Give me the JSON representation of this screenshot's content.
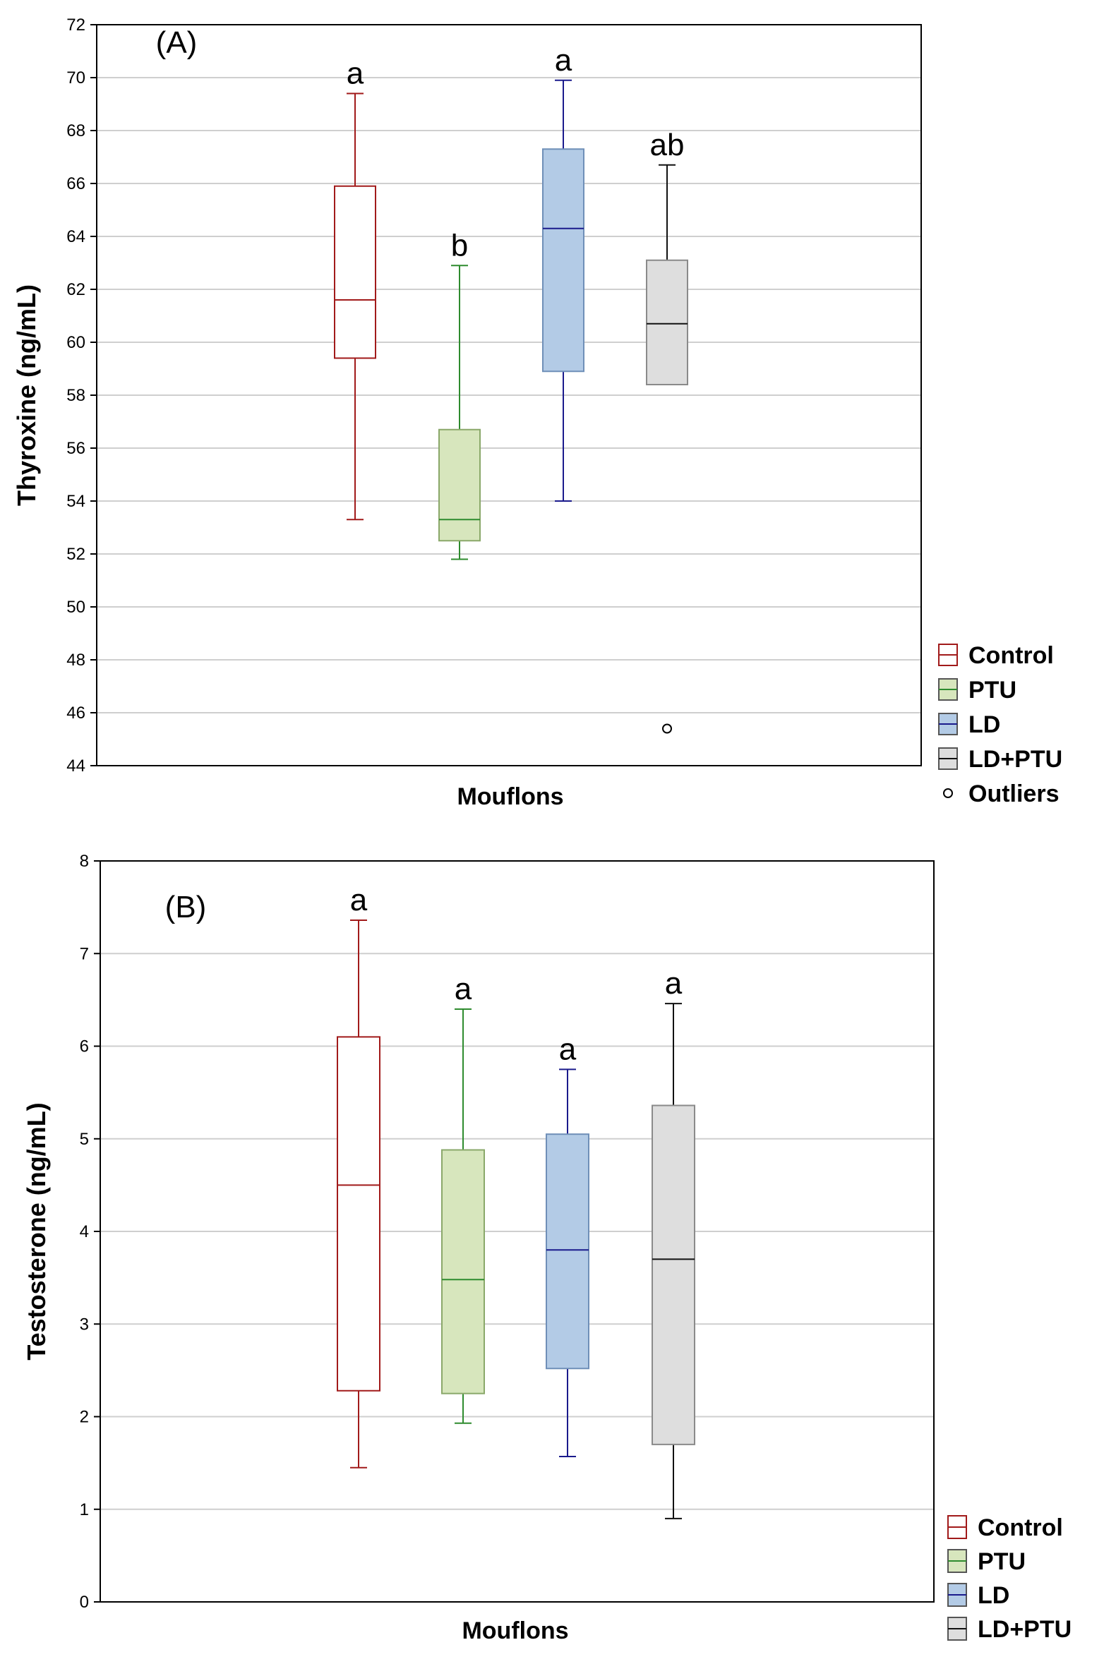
{
  "chart_data": [
    {
      "type": "box",
      "panel_label": "(A)",
      "xlabel": "Mouflons",
      "ylabel": "Thyroxine (ng/mL)",
      "ylim": [
        44,
        72
      ],
      "yticks": [
        44,
        46,
        48,
        50,
        52,
        54,
        56,
        58,
        60,
        62,
        64,
        66,
        68,
        70,
        72
      ],
      "grid": true,
      "legend_position": "right-bottom",
      "series": [
        {
          "name": "Control",
          "color": "#a11a1a",
          "fill": "#ffffff",
          "whisker_low": 53.3,
          "q1": 59.4,
          "median": 61.6,
          "q3": 65.9,
          "whisker_high": 69.4,
          "letter": "a"
        },
        {
          "name": "PTU",
          "color": "#2e8b2e",
          "fill": "#d7e6bd",
          "whisker_low": 51.8,
          "q1": 52.5,
          "median": 53.3,
          "q3": 56.7,
          "whisker_high": 62.9,
          "letter": "b"
        },
        {
          "name": "LD",
          "color": "#1a1a8c",
          "fill": "#b3cbe6",
          "whisker_low": 54.0,
          "q1": 58.9,
          "median": 64.3,
          "q3": 67.3,
          "whisker_high": 69.9,
          "letter": "a"
        },
        {
          "name": "LD+PTU",
          "color": "#111111",
          "fill": "#dedede",
          "whisker_low": null,
          "q1": 58.4,
          "median": 60.7,
          "q3": 63.1,
          "whisker_high": 66.7,
          "letter": "ab",
          "outliers": [
            45.4
          ]
        }
      ],
      "legend": [
        "Control",
        "PTU",
        "LD",
        "LD+PTU",
        "Outliers"
      ]
    },
    {
      "type": "box",
      "panel_label": "(B)",
      "xlabel": "Mouflons",
      "ylabel": "Testosterone (ng/mL)",
      "ylim": [
        0,
        8
      ],
      "yticks": [
        0,
        1,
        2,
        3,
        4,
        5,
        6,
        7,
        8
      ],
      "grid": true,
      "legend_position": "right-bottom",
      "series": [
        {
          "name": "Control",
          "color": "#a11a1a",
          "fill": "#ffffff",
          "whisker_low": 1.45,
          "q1": 2.28,
          "median": 4.5,
          "q3": 6.1,
          "whisker_high": 7.36,
          "letter": "a"
        },
        {
          "name": "PTU",
          "color": "#2e8b2e",
          "fill": "#d7e6bd",
          "whisker_low": 1.93,
          "q1": 2.25,
          "median": 3.48,
          "q3": 4.88,
          "whisker_high": 6.4,
          "letter": "a"
        },
        {
          "name": "LD",
          "color": "#1a1a8c",
          "fill": "#b3cbe6",
          "whisker_low": 1.57,
          "q1": 2.52,
          "median": 3.8,
          "q3": 5.05,
          "whisker_high": 5.75,
          "letter": "a"
        },
        {
          "name": "LD+PTU",
          "color": "#111111",
          "fill": "#dedede",
          "whisker_low": 0.9,
          "q1": 1.7,
          "median": 3.7,
          "q3": 5.36,
          "whisker_high": 6.46,
          "letter": "a"
        }
      ],
      "legend": [
        "Control",
        "PTU",
        "LD",
        "LD+PTU"
      ]
    }
  ]
}
